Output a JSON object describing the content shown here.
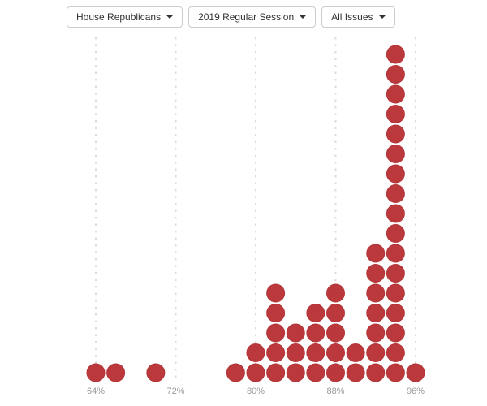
{
  "toolbar": {
    "filters": [
      {
        "id": "group",
        "label": "House Republicans",
        "icon": "caret-down-icon"
      },
      {
        "id": "session",
        "label": "2019 Regular Session",
        "icon": "caret-down-icon"
      },
      {
        "id": "issues",
        "label": "All Issues",
        "icon": "caret-down-icon"
      }
    ]
  },
  "chart_data": {
    "type": "dot-histogram",
    "x_unit": "percent",
    "bin_width_pct": 2,
    "x_ticks": [
      {
        "pct": 64,
        "label": "64%"
      },
      {
        "pct": 72,
        "label": "72%"
      },
      {
        "pct": 80,
        "label": "80%"
      },
      {
        "pct": 88,
        "label": "88%"
      },
      {
        "pct": 96,
        "label": "96%"
      }
    ],
    "bins": [
      {
        "pct": 64,
        "count": 1
      },
      {
        "pct": 66,
        "count": 1
      },
      {
        "pct": 70,
        "count": 1
      },
      {
        "pct": 78,
        "count": 1
      },
      {
        "pct": 80,
        "count": 2
      },
      {
        "pct": 82,
        "count": 5
      },
      {
        "pct": 84,
        "count": 3
      },
      {
        "pct": 86,
        "count": 4
      },
      {
        "pct": 88,
        "count": 5
      },
      {
        "pct": 90,
        "count": 2
      },
      {
        "pct": 92,
        "count": 7
      },
      {
        "pct": 94,
        "count": 17
      },
      {
        "pct": 96,
        "count": 1
      }
    ],
    "total_dots": 50,
    "max_stack": 17,
    "xlim_pct": [
      62,
      98
    ],
    "grid": "vertical-dashed",
    "legend": "none"
  },
  "colors": {
    "dot": "#bb393c",
    "dot_stroke": "#b23538",
    "gridline": "#dcdcdc",
    "tick_label": "#999999",
    "button_bg": "#ffffff",
    "button_border": "#cccccc",
    "button_text": "#333333",
    "page_bg": "#ffffff"
  }
}
